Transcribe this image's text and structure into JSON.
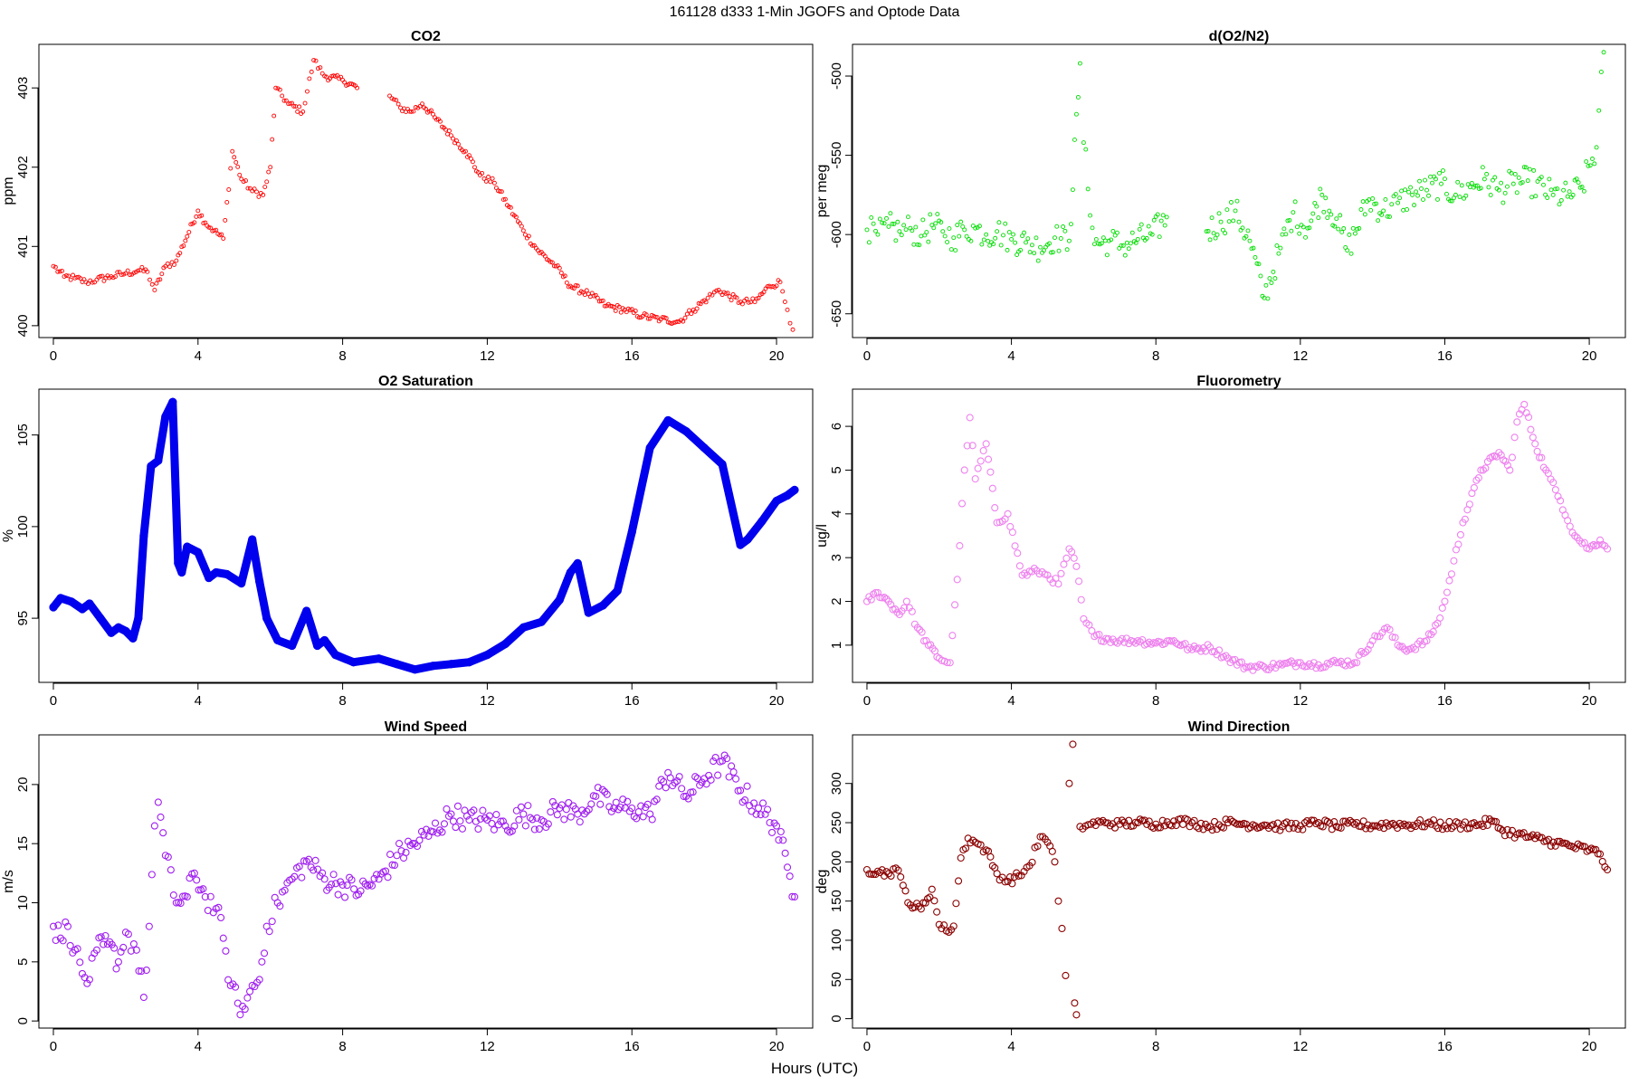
{
  "figure": {
    "title": "161128   d333   1-Min  JGOFS and Optode Data",
    "xlabel": "Hours (UTC)"
  },
  "chart_data": [
    {
      "id": "co2",
      "type": "scatter",
      "title": "CO2",
      "ylabel": "ppm",
      "color": "#ff0000",
      "marker": "small-circle",
      "xlim": [
        -0.4,
        21.0
      ],
      "ylim": [
        399.85,
        403.55
      ],
      "xticks": [
        0,
        4,
        8,
        12,
        16,
        20
      ],
      "yticks": [
        400,
        401,
        402,
        403
      ],
      "x": [
        0.0,
        0.3,
        0.6,
        0.9,
        1.2,
        1.6,
        2.0,
        2.4,
        2.6,
        2.8,
        3.1,
        3.4,
        4.0,
        4.2,
        4.45,
        4.7,
        4.95,
        5.2,
        5.5,
        5.8,
        6.0,
        6.15,
        6.5,
        6.9,
        7.2,
        7.5,
        8.0,
        8.4,
        9.3,
        9.6,
        9.9,
        10.2,
        10.6,
        11.0,
        11.4,
        11.8,
        12.2,
        12.6,
        13.0,
        13.4,
        13.9,
        14.3,
        14.8,
        15.3,
        15.8,
        16.3,
        16.8,
        17.3,
        17.7,
        18.1,
        18.4,
        19.0,
        19.4,
        19.8,
        20.1,
        20.3,
        20.45
      ],
      "y": [
        400.75,
        400.62,
        400.6,
        400.55,
        400.58,
        400.62,
        400.66,
        400.7,
        400.68,
        400.45,
        400.75,
        400.82,
        401.45,
        401.3,
        401.2,
        401.1,
        402.2,
        401.85,
        401.7,
        401.65,
        402.0,
        403.0,
        402.8,
        402.7,
        403.35,
        403.15,
        403.1,
        403.0,
        402.9,
        402.75,
        402.7,
        402.8,
        402.6,
        402.4,
        402.2,
        401.9,
        401.8,
        401.5,
        401.2,
        400.95,
        400.75,
        400.5,
        400.4,
        400.25,
        400.2,
        400.12,
        400.08,
        400.05,
        400.2,
        400.35,
        400.45,
        400.3,
        400.3,
        400.5,
        400.55,
        400.2,
        399.95
      ]
    },
    {
      "id": "o2n2",
      "type": "scatter",
      "title": "d(O2/N2)",
      "ylabel": "per meg",
      "color": "#00dd00",
      "marker": "small-circle",
      "xlim": [
        -0.4,
        21.0
      ],
      "ylim": [
        -665,
        -480
      ],
      "xticks": [
        0,
        4,
        8,
        12,
        16,
        20
      ],
      "yticks": [
        -500,
        -550,
        -600,
        -650
      ],
      "x": [
        0.0,
        0.3,
        0.6,
        0.9,
        1.2,
        1.5,
        1.8,
        2.1,
        2.4,
        2.7,
        3.0,
        3.3,
        3.6,
        4.0,
        4.4,
        4.8,
        5.2,
        5.6,
        5.9,
        6.0,
        6.3,
        6.7,
        7.1,
        7.5,
        7.9,
        8.3,
        9.4,
        9.8,
        10.2,
        10.6,
        11.0,
        11.4,
        11.8,
        12.2,
        12.6,
        13.0,
        13.3,
        13.9,
        14.3,
        14.7,
        15.1,
        15.5,
        15.9,
        16.3,
        16.7,
        17.1,
        17.5,
        17.9,
        18.3,
        19.0,
        19.4,
        19.8,
        20.2,
        20.4
      ],
      "y": [
        -597,
        -600,
        -595,
        -598,
        -596,
        -601,
        -594,
        -598,
        -602,
        -597,
        -596,
        -600,
        -598,
        -603,
        -605,
        -608,
        -602,
        -604,
        -492,
        -542,
        -606,
        -604,
        -607,
        -603,
        -600,
        -589,
        -598,
        -592,
        -585,
        -604,
        -640,
        -612,
        -586,
        -596,
        -575,
        -590,
        -610,
        -578,
        -585,
        -580,
        -575,
        -572,
        -568,
        -575,
        -570,
        -565,
        -572,
        -568,
        -566,
        -575,
        -576,
        -570,
        -545,
        -485
      ]
    },
    {
      "id": "o2sat",
      "type": "line",
      "title": "O2 Saturation",
      "ylabel": "%",
      "color": "#0000ee",
      "marker": "thick-trace",
      "xlim": [
        -0.4,
        21.0
      ],
      "ylim": [
        91.5,
        107.5
      ],
      "xticks": [
        0,
        4,
        8,
        12,
        16,
        20
      ],
      "yticks": [
        95,
        100,
        105
      ],
      "x": [
        0.0,
        0.2,
        0.5,
        0.8,
        1.0,
        1.3,
        1.6,
        1.8,
        2.0,
        2.2,
        2.35,
        2.5,
        2.7,
        2.9,
        3.1,
        3.3,
        3.45,
        3.55,
        3.7,
        4.0,
        4.3,
        4.5,
        4.8,
        5.2,
        5.5,
        5.7,
        5.9,
        6.2,
        6.6,
        7.0,
        7.3,
        7.5,
        7.8,
        8.3,
        9.0,
        9.5,
        10.0,
        10.5,
        11.0,
        11.5,
        12.0,
        12.5,
        13.0,
        13.5,
        14.0,
        14.3,
        14.5,
        14.8,
        15.2,
        15.6,
        16.0,
        16.5,
        17.0,
        17.5,
        18.0,
        18.5,
        19.0,
        19.2,
        19.6,
        20.0,
        20.3,
        20.5
      ],
      "y": [
        95.6,
        96.1,
        95.9,
        95.5,
        95.8,
        95.0,
        94.2,
        94.5,
        94.3,
        93.9,
        95.0,
        99.5,
        103.3,
        103.6,
        106.0,
        106.8,
        98.0,
        97.5,
        98.9,
        98.6,
        97.2,
        97.5,
        97.4,
        96.9,
        99.3,
        97.0,
        95.0,
        93.8,
        93.5,
        95.4,
        93.5,
        93.8,
        93.0,
        92.6,
        92.8,
        92.5,
        92.2,
        92.4,
        92.5,
        92.6,
        93.0,
        93.6,
        94.5,
        94.8,
        96.0,
        97.5,
        98.0,
        95.3,
        95.7,
        96.5,
        99.7,
        104.3,
        105.8,
        105.2,
        104.3,
        103.4,
        99.0,
        99.3,
        100.3,
        101.4,
        101.7,
        102.0
      ]
    },
    {
      "id": "fluoro",
      "type": "scatter",
      "title": "Fluorometry",
      "ylabel": "ug/l",
      "color": "#ee82ee",
      "marker": "circle",
      "xlim": [
        -0.4,
        21.0
      ],
      "ylim": [
        0.15,
        6.85
      ],
      "xticks": [
        0,
        4,
        8,
        12,
        16,
        20
      ],
      "yticks": [
        1,
        2,
        3,
        4,
        5,
        6
      ],
      "x": [
        0.0,
        0.3,
        0.6,
        0.9,
        1.1,
        1.4,
        1.7,
        2.0,
        2.3,
        2.5,
        2.7,
        2.85,
        3.0,
        3.3,
        3.6,
        3.9,
        4.3,
        4.7,
        5.0,
        5.3,
        5.6,
        5.8,
        6.0,
        6.3,
        7.0,
        7.5,
        8.0,
        8.5,
        9.0,
        9.5,
        10.0,
        10.5,
        11.0,
        11.5,
        12.0,
        12.5,
        13.0,
        13.5,
        14.0,
        14.4,
        14.7,
        15.0,
        15.5,
        15.8,
        16.0,
        16.5,
        17.0,
        17.5,
        17.8,
        18.0,
        18.2,
        18.5,
        18.8,
        19.2,
        19.6,
        20.0,
        20.3,
        20.5
      ],
      "y": [
        2.0,
        2.2,
        2.0,
        1.7,
        2.0,
        1.4,
        1.0,
        0.7,
        0.6,
        2.5,
        5.0,
        6.2,
        4.8,
        5.6,
        3.8,
        4.0,
        2.6,
        2.7,
        2.6,
        2.4,
        3.2,
        2.8,
        1.6,
        1.2,
        1.1,
        1.1,
        1.05,
        1.1,
        0.9,
        0.95,
        0.7,
        0.5,
        0.5,
        0.55,
        0.6,
        0.55,
        0.6,
        0.6,
        1.1,
        1.4,
        1.0,
        0.9,
        1.1,
        1.5,
        2.0,
        3.8,
        5.0,
        5.4,
        5.0,
        6.1,
        6.5,
        5.6,
        5.0,
        4.3,
        3.5,
        3.2,
        3.4,
        3.2
      ]
    },
    {
      "id": "windspeed",
      "type": "scatter",
      "title": "Wind Speed",
      "ylabel": "m/s",
      "color": "#a020f0",
      "marker": "circle",
      "xlim": [
        -0.4,
        21.0
      ],
      "ylim": [
        -0.6,
        24.2
      ],
      "xticks": [
        0,
        4,
        8,
        12,
        16,
        20
      ],
      "yticks": [
        0,
        5,
        10,
        15,
        20
      ],
      "x": [
        0.0,
        0.2,
        0.4,
        0.6,
        0.8,
        1.0,
        1.2,
        1.5,
        1.8,
        2.0,
        2.3,
        2.5,
        2.65,
        2.8,
        2.9,
        3.1,
        3.4,
        3.7,
        3.9,
        4.2,
        4.5,
        4.7,
        4.9,
        5.1,
        5.3,
        5.5,
        5.7,
        5.9,
        6.2,
        6.6,
        7.0,
        7.5,
        8.0,
        8.5,
        9.0,
        9.5,
        10.0,
        10.5,
        11.0,
        11.5,
        12.0,
        12.5,
        13.0,
        13.5,
        14.0,
        14.5,
        15.0,
        15.5,
        16.0,
        16.5,
        17.0,
        17.5,
        18.0,
        18.5,
        19.0,
        19.5,
        20.0,
        20.3,
        20.5
      ],
      "y": [
        8.0,
        7.0,
        8.0,
        6.0,
        4.0,
        3.5,
        6.0,
        6.5,
        5.0,
        7.5,
        6.0,
        2.0,
        8.0,
        16.5,
        18.5,
        14.0,
        10.0,
        10.5,
        12.5,
        10.5,
        9.5,
        7.0,
        3.0,
        1.5,
        1.0,
        3.0,
        3.5,
        8.0,
        10.0,
        12.0,
        13.5,
        12.0,
        11.5,
        11.0,
        12.0,
        14.0,
        15.0,
        16.0,
        17.5,
        17.0,
        17.0,
        16.5,
        17.5,
        17.0,
        18.0,
        17.5,
        19.0,
        18.0,
        18.0,
        17.5,
        21.0,
        19.0,
        20.5,
        22.0,
        19.5,
        18.0,
        16.5,
        13.0,
        10.5
      ]
    },
    {
      "id": "winddir",
      "type": "scatter",
      "title": "Wind Direction",
      "ylabel": "deg",
      "color": "#8b0000",
      "marker": "circle",
      "xlim": [
        -0.4,
        21.0
      ],
      "ylim": [
        -12,
        362
      ],
      "xticks": [
        0,
        4,
        8,
        12,
        16,
        20
      ],
      "yticks": [
        0,
        50,
        100,
        150,
        200,
        250,
        300
      ],
      "x": [
        0.0,
        0.3,
        0.6,
        0.8,
        1.0,
        1.2,
        1.5,
        1.8,
        2.0,
        2.2,
        2.4,
        2.6,
        2.8,
        3.0,
        3.3,
        3.6,
        3.9,
        4.2,
        4.5,
        4.8,
        5.0,
        5.2,
        5.3,
        5.4,
        5.5,
        5.6,
        5.7,
        5.75,
        5.8,
        5.9,
        6.2,
        6.6,
        7.0,
        7.5,
        8.0,
        8.5,
        9.0,
        9.5,
        10.0,
        10.5,
        11.0,
        11.5,
        12.0,
        12.5,
        13.0,
        13.5,
        14.0,
        14.5,
        15.0,
        15.5,
        16.0,
        16.5,
        17.0,
        17.3,
        17.6,
        18.0,
        18.5,
        19.0,
        19.5,
        20.0,
        20.3,
        20.5
      ],
      "y": [
        190,
        188,
        185,
        192,
        170,
        145,
        140,
        165,
        120,
        112,
        118,
        205,
        230,
        225,
        215,
        185,
        175,
        182,
        195,
        232,
        225,
        200,
        150,
        115,
        55,
        300,
        350,
        20,
        5,
        245,
        248,
        250,
        248,
        250,
        248,
        252,
        250,
        245,
        250,
        248,
        247,
        245,
        246,
        250,
        245,
        248,
        246,
        248,
        247,
        249,
        246,
        247,
        248,
        252,
        240,
        235,
        230,
        225,
        220,
        215,
        210,
        190
      ]
    }
  ]
}
